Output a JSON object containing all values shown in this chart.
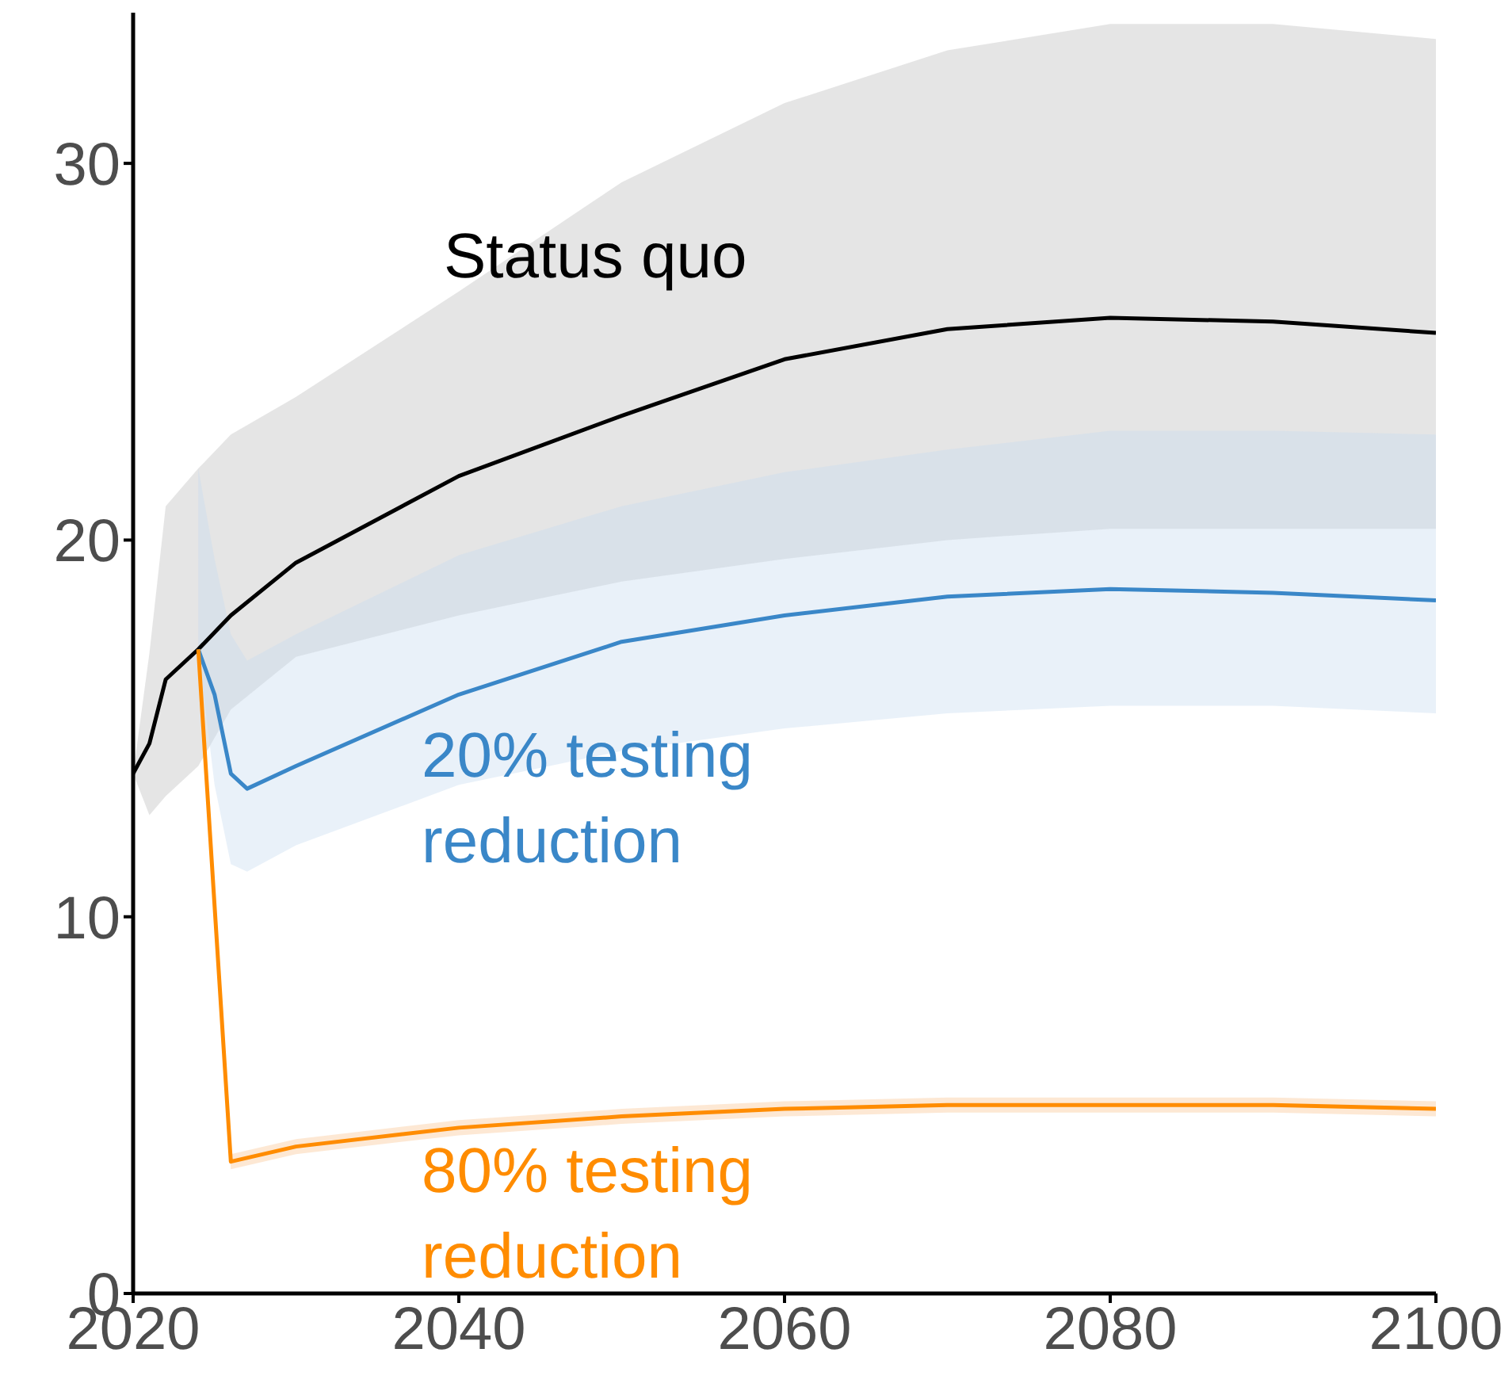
{
  "chart_data": {
    "type": "line",
    "xlim": [
      2020,
      2100
    ],
    "xticks": [
      2020,
      2040,
      2060,
      2080,
      2100
    ],
    "ylim": [
      0,
      34
    ],
    "yticks": [
      0,
      10,
      20,
      30
    ],
    "grid": false,
    "legend": false,
    "marker": "none",
    "line_style": "solid",
    "series": [
      {
        "name": "Status quo",
        "color": "#000000",
        "x": [
          2020,
          2021,
          2022,
          2024,
          2026,
          2030,
          2040,
          2050,
          2060,
          2070,
          2080,
          2090,
          2100
        ],
        "values": [
          13.8,
          14.6,
          16.3,
          17.1,
          18.0,
          19.4,
          21.7,
          23.3,
          24.8,
          25.6,
          25.9,
          25.8,
          25.5
        ],
        "lower": [
          13.8,
          12.7,
          13.2,
          14.0,
          15.5,
          16.9,
          18.0,
          18.9,
          19.5,
          20.0,
          20.3,
          20.3,
          20.3
        ],
        "upper": [
          13.8,
          17.0,
          20.9,
          21.9,
          22.8,
          23.8,
          26.6,
          29.5,
          31.6,
          33.0,
          33.7,
          33.7,
          33.3
        ]
      },
      {
        "name": "20% testing reduction",
        "color": "#3a87c8",
        "x": [
          2024,
          2025,
          2026,
          2027,
          2030,
          2040,
          2050,
          2060,
          2070,
          2080,
          2090,
          2100
        ],
        "values": [
          17.1,
          15.9,
          13.8,
          13.4,
          14.0,
          15.9,
          17.3,
          18.0,
          18.5,
          18.7,
          18.6,
          18.4
        ],
        "lower": [
          17.1,
          13.5,
          11.4,
          11.2,
          11.9,
          13.5,
          14.4,
          15.0,
          15.4,
          15.6,
          15.6,
          15.4
        ],
        "upper": [
          21.9,
          19.5,
          17.5,
          16.8,
          17.5,
          19.6,
          20.9,
          21.8,
          22.4,
          22.9,
          22.9,
          22.8
        ]
      },
      {
        "name": "80% testing reduction",
        "color": "#ff8c00",
        "x": [
          2024,
          2026,
          2030,
          2040,
          2050,
          2060,
          2070,
          2080,
          2090,
          2100
        ],
        "values": [
          17.1,
          3.5,
          3.9,
          4.4,
          4.7,
          4.9,
          5.0,
          5.0,
          5.0,
          4.9
        ],
        "lower": [
          17.0,
          3.3,
          3.7,
          4.2,
          4.5,
          4.7,
          4.8,
          4.8,
          4.8,
          4.7
        ],
        "upper": [
          17.2,
          3.7,
          4.1,
          4.6,
          4.9,
          5.1,
          5.2,
          5.2,
          5.2,
          5.1
        ]
      }
    ]
  }
}
